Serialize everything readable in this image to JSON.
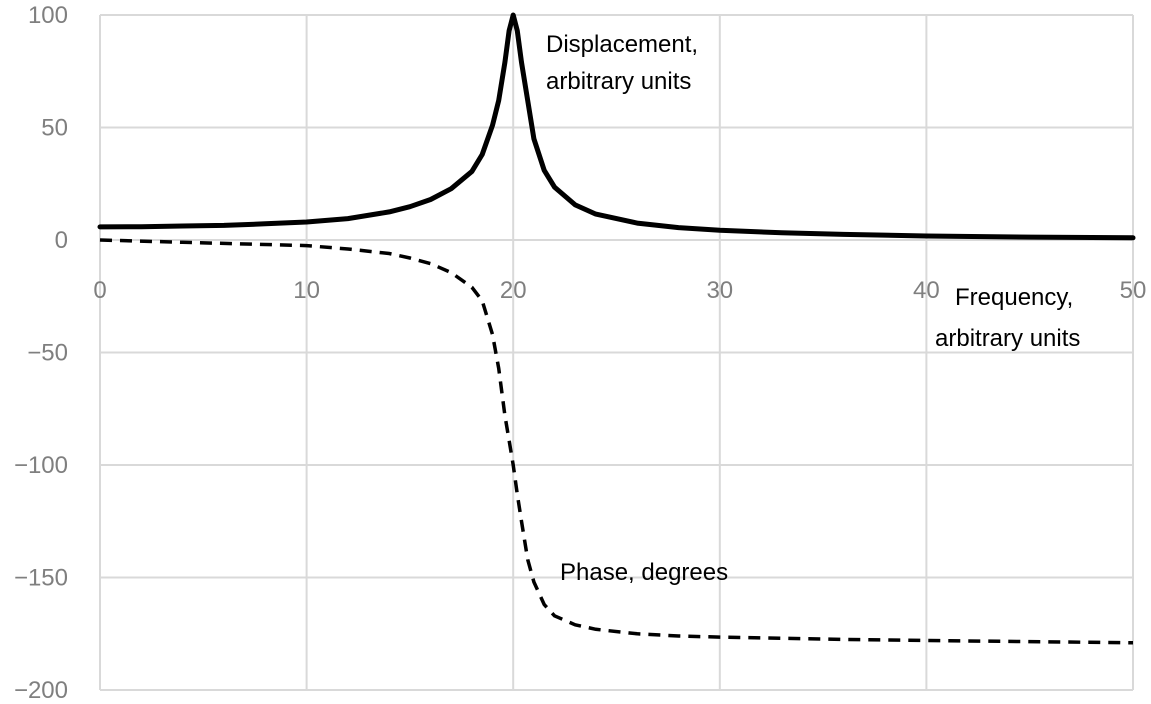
{
  "chart_data": {
    "type": "line",
    "title": "",
    "xlabel": "",
    "ylabel": "",
    "xlim": [
      0,
      50
    ],
    "ylim": [
      -200,
      100
    ],
    "x_ticks": [
      0,
      10,
      20,
      30,
      40,
      50
    ],
    "y_ticks": [
      100,
      50,
      0,
      -50,
      -100,
      -150,
      -200
    ],
    "y_tick_labels": [
      "100",
      "50",
      "0",
      "−50",
      "−100",
      "−150",
      "−200"
    ],
    "grid": true,
    "annotations": [
      {
        "lines": [
          "Displacement,",
          "arbitrary units"
        ]
      },
      {
        "lines": [
          "Frequency,",
          "arbitrary units"
        ]
      },
      {
        "lines": [
          "Phase, degrees"
        ]
      }
    ],
    "series": [
      {
        "style": "solid",
        "color": "#000000",
        "x": [
          0,
          2,
          4,
          6,
          8,
          10,
          12,
          14,
          15,
          16,
          17,
          18,
          18.5,
          19,
          19.3,
          19.6,
          19.8,
          20,
          20.2,
          20.4,
          20.7,
          21,
          21.5,
          22,
          23,
          24,
          26,
          28,
          30,
          33,
          36,
          40,
          45,
          50
        ],
        "y": [
          5.8,
          5.9,
          6.2,
          6.5,
          7.2,
          8.0,
          9.5,
          12.5,
          14.8,
          18.0,
          22.8,
          30.5,
          38.0,
          51.0,
          62.0,
          79.0,
          93.0,
          100.0,
          93.0,
          79.0,
          62.0,
          45.0,
          31.0,
          23.5,
          15.6,
          11.5,
          7.5,
          5.5,
          4.3,
          3.2,
          2.5,
          1.8,
          1.3,
          1.0
        ]
      },
      {
        "style": "dashed",
        "color": "#000000",
        "x": [
          0,
          4,
          8,
          10,
          12,
          14,
          15,
          16,
          17,
          18,
          18.5,
          19,
          19.3,
          19.6,
          19.8,
          20,
          20.2,
          20.4,
          20.7,
          21,
          21.5,
          22,
          23,
          24,
          26,
          28,
          30,
          33,
          36,
          40,
          45,
          50
        ],
        "y": [
          0,
          -1,
          -2,
          -2.5,
          -4,
          -6,
          -8,
          -10.5,
          -14.5,
          -21,
          -27,
          -42,
          -57,
          -78,
          -89,
          -100,
          -113,
          -125,
          -142,
          -152,
          -162,
          -167,
          -171,
          -173,
          -175,
          -176,
          -176.5,
          -177,
          -177.5,
          -178,
          -178.5,
          -179
        ]
      }
    ]
  }
}
